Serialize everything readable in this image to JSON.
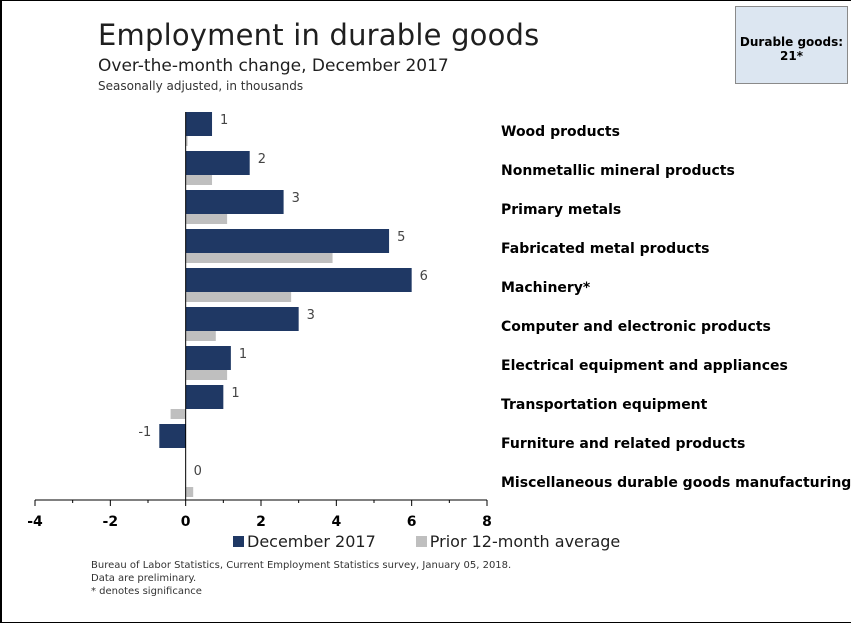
{
  "header": {
    "title": "Employment in durable goods",
    "subtitle": "Over-the-month change, December 2017",
    "subsubtitle": "Seasonally adjusted, in thousands"
  },
  "callout": {
    "line1": "Durable goods:",
    "line2": "21*"
  },
  "chart_data": {
    "type": "bar",
    "orientation": "horizontal",
    "title": "Employment in durable goods",
    "subtitle": "Over-the-month change, December 2017",
    "categories": [
      "Wood products",
      "Nonmetallic mineral products",
      "Primary metals",
      "Fabricated metal products",
      "Machinery*",
      "Computer and electronic products",
      "Electrical equipment and appliances",
      "Transportation equipment",
      "Furniture and related products",
      "Miscellaneous durable goods manufacturing"
    ],
    "series": [
      {
        "name": "December 2017",
        "color": "#1f3864",
        "values": [
          0.7,
          1.7,
          2.6,
          5.4,
          6.0,
          3.0,
          1.2,
          1.0,
          -0.7,
          0.0
        ],
        "labels": [
          "1",
          "2",
          "3",
          "5",
          "6",
          "3",
          "1",
          "1",
          "-1",
          "0"
        ]
      },
      {
        "name": "Prior 12-month average",
        "color": "#bfbfbf",
        "values": [
          0.05,
          0.7,
          1.1,
          3.9,
          2.8,
          0.8,
          1.1,
          -0.4,
          0.0,
          0.2
        ]
      }
    ],
    "xlim": [
      -4,
      8
    ],
    "xticks": [
      "-4",
      "-2",
      "0",
      "2",
      "4",
      "6",
      "8"
    ],
    "legend_position": "bottom"
  },
  "notes": {
    "source": "Bureau of Labor Statistics, Current Employment Statistics survey, January 05, 2018.",
    "preliminary": "Data are preliminary.",
    "significance": "* denotes significance"
  }
}
